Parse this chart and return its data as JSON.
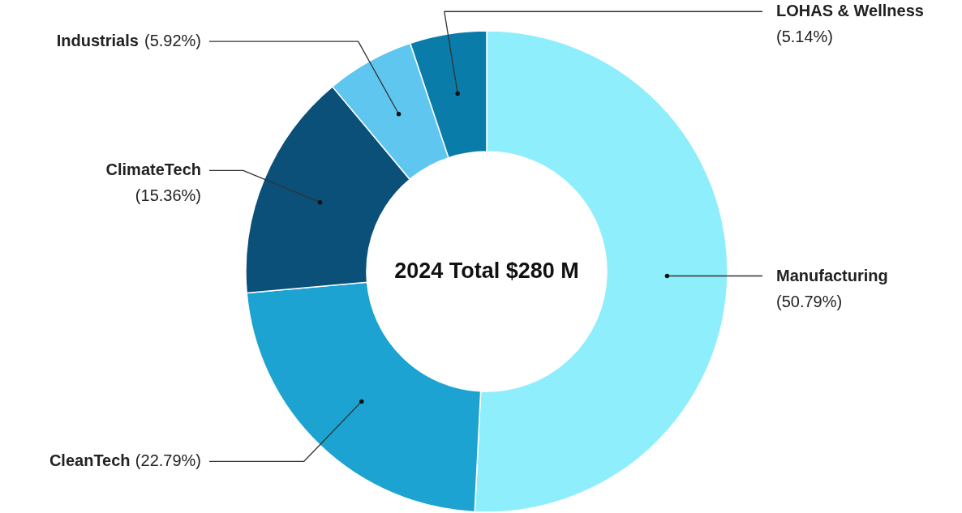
{
  "chart_data": {
    "type": "donut",
    "categories": [
      "Manufacturing",
      "CleanTech",
      "ClimateTech",
      "Industrials",
      "LOHAS & Wellness"
    ],
    "values": [
      50.79,
      22.79,
      15.36,
      5.92,
      5.14
    ],
    "colors": [
      "#8eeefb",
      "#1da3d1",
      "#0a5079",
      "#5fc6ef",
      "#0a7ca9"
    ],
    "value_labels": [
      "(50.79%)",
      "(22.79%)",
      "(15.36%)",
      "(5.92%)",
      "(5.14%)"
    ],
    "annotations": [
      "2024 Total $280 M"
    ]
  }
}
